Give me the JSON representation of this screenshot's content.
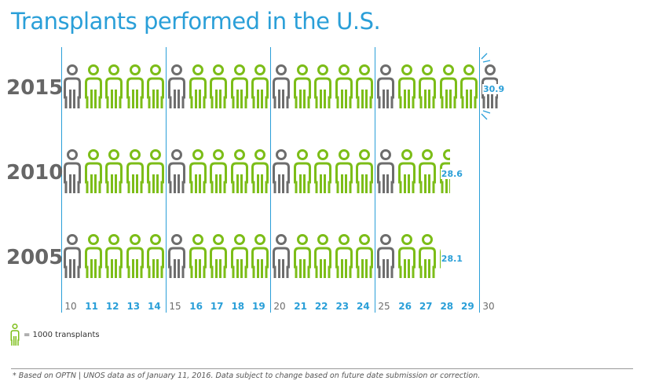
{
  "title": "Transplants performed in the U.S.",
  "colors": {
    "accent": "#2a9fd8",
    "icon_green": "#7cbd18",
    "icon_gray": "#6d6d6d",
    "year_text": "#666666"
  },
  "chart_data": {
    "type": "pictograph",
    "title": "Transplants performed in the U.S.",
    "unit_icon": "person-icon",
    "categories": [
      "2015",
      "2010",
      "2005"
    ],
    "values": [
      30.9,
      28.6,
      28.1
    ],
    "value_labels": [
      "30.9",
      "28.6",
      "28.1"
    ],
    "axis_range": [
      10,
      31
    ],
    "ticks": [
      "10",
      "11",
      "12",
      "13",
      "14",
      "15",
      "16",
      "17",
      "18",
      "19",
      "20",
      "21",
      "22",
      "23",
      "24",
      "25",
      "26",
      "27",
      "28",
      "29",
      "30"
    ],
    "highlight_every": 5,
    "gridlines": [
      10,
      15,
      20,
      25,
      30
    ]
  },
  "legend": {
    "text": "= 1000 transplants"
  },
  "footnote": "* Based on OPTN | UNOS data as of January 11, 2016. Data subject to change based on future date submission or correction."
}
